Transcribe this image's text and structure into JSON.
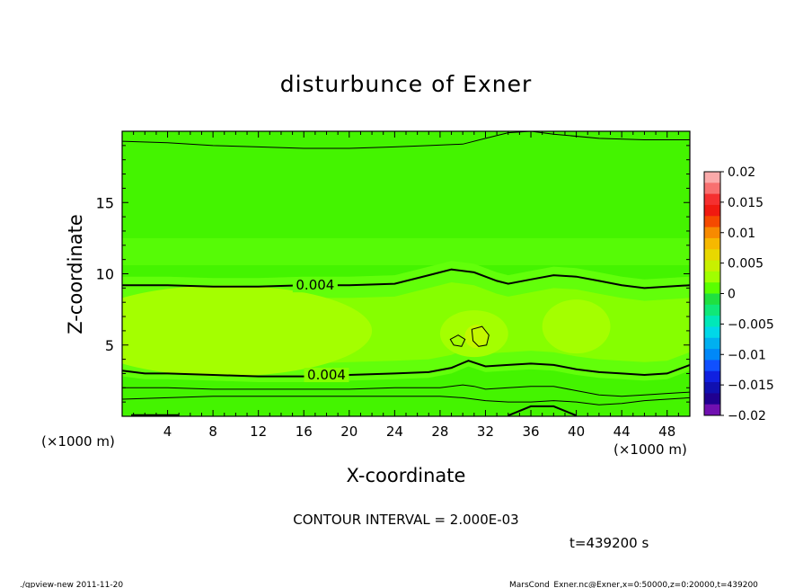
{
  "chart_data": {
    "type": "heatmap",
    "title": "disturbunce of Exner",
    "xlabel": "X-coordinate",
    "ylabel": "Z-coordinate",
    "x_unit": "(×1000 m)",
    "y_unit": "(×1000 m)",
    "xlim": [
      0,
      50
    ],
    "ylim": [
      0,
      20
    ],
    "x_ticks": [
      "4",
      "8",
      "12",
      "16",
      "20",
      "24",
      "28",
      "32",
      "36",
      "40",
      "44",
      "48"
    ],
    "y_ticks": [
      "5",
      "10",
      "15"
    ],
    "contour_interval_text": "CONTOUR INTERVAL = 2.000E-03",
    "time_text": "t=439200 s",
    "contour_labels": [
      {
        "text": "0.004",
        "x": 17,
        "z": 9.2
      },
      {
        "text": "0.004",
        "x": 18,
        "z": 2.9
      }
    ],
    "colorbar": {
      "labels": [
        "0.02",
        "0.015",
        "0.01",
        "0.005",
        "0",
        "−0.005",
        "−0.01",
        "−0.015",
        "−0.02"
      ],
      "levels": [
        0.02,
        0.015,
        0.01,
        0.005,
        0,
        -0.005,
        -0.01,
        -0.015,
        -0.02
      ],
      "colors": [
        "#fbaaaa",
        "#f87070",
        "#f53030",
        "#f01a10",
        "#f54a00",
        "#f78a00",
        "#f6b800",
        "#e8d800",
        "#c8f000",
        "#a0ff00",
        "#5aff00",
        "#20e040",
        "#10e878",
        "#00e8b8",
        "#00d8e8",
        "#00b0f0",
        "#0088f8",
        "#1050ff",
        "#1020e0",
        "#1010b0",
        "#200090",
        "#7010b0"
      ]
    },
    "fill_colors": {
      "outer": "#44f400",
      "band_mid": "#62ff0a",
      "band_high": "#86ff00",
      "core": "#a4ff00",
      "core_peak": "#c4f800"
    },
    "contour_lines": [
      {
        "name": "upper-0.002",
        "weight": "thin",
        "x": [
          0,
          4,
          8,
          12,
          16,
          20,
          24,
          27,
          30,
          32,
          34,
          36,
          38,
          42,
          46,
          50
        ],
        "z": [
          19.3,
          19.2,
          19.0,
          18.9,
          18.8,
          18.8,
          18.9,
          19.0,
          19.1,
          19.5,
          19.9,
          20.0,
          19.8,
          19.5,
          19.4,
          19.4
        ]
      },
      {
        "name": "upper-0.004",
        "weight": "thick",
        "x": [
          0,
          4,
          8,
          12,
          16,
          20,
          24,
          27,
          29,
          31,
          33,
          34,
          36,
          38,
          40,
          42,
          44,
          46,
          48,
          50
        ],
        "z": [
          9.2,
          9.2,
          9.1,
          9.1,
          9.2,
          9.2,
          9.3,
          9.9,
          10.3,
          10.1,
          9.5,
          9.3,
          9.6,
          9.9,
          9.8,
          9.5,
          9.2,
          9.0,
          9.1,
          9.2
        ]
      },
      {
        "name": "lower-0.004",
        "weight": "thick",
        "x": [
          0,
          2,
          4,
          8,
          12,
          16,
          20,
          24,
          27,
          29,
          30.5,
          32,
          34,
          36,
          38,
          40,
          42,
          44,
          46,
          48,
          49,
          50
        ],
        "z": [
          3.2,
          3.0,
          3.0,
          2.9,
          2.8,
          2.8,
          2.9,
          3.0,
          3.1,
          3.4,
          3.9,
          3.5,
          3.6,
          3.7,
          3.6,
          3.3,
          3.1,
          3.0,
          2.9,
          3.0,
          3.3,
          3.6
        ]
      },
      {
        "name": "lower-0.002",
        "weight": "thin",
        "x": [
          0,
          4,
          8,
          12,
          16,
          20,
          24,
          28,
          30,
          31,
          32,
          34,
          36,
          38,
          40,
          42,
          44,
          46,
          48,
          50
        ],
        "z": [
          2.0,
          2.0,
          1.9,
          1.9,
          1.9,
          1.9,
          2.0,
          2.0,
          2.2,
          2.1,
          1.9,
          2.0,
          2.1,
          2.1,
          1.8,
          1.5,
          1.4,
          1.5,
          1.6,
          1.7
        ]
      },
      {
        "name": "lower-0.000",
        "weight": "thin",
        "x": [
          0,
          4,
          8,
          12,
          16,
          20,
          24,
          28,
          30,
          32,
          34,
          36,
          38,
          40,
          42,
          44,
          46,
          48,
          50
        ],
        "z": [
          1.2,
          1.3,
          1.4,
          1.4,
          1.4,
          1.4,
          1.4,
          1.4,
          1.3,
          1.1,
          1.0,
          1.0,
          1.1,
          1.0,
          0.8,
          0.9,
          1.1,
          1.2,
          1.3
        ]
      }
    ],
    "closed_contours": [
      {
        "name": "cell-small",
        "x": [
          28.9,
          29.6,
          30.2,
          29.9,
          29.2
        ],
        "z": [
          5.4,
          5.7,
          5.4,
          4.9,
          5.0
        ]
      },
      {
        "name": "cell-large",
        "x": [
          30.8,
          31.7,
          32.3,
          32.1,
          31.4,
          30.9
        ],
        "z": [
          6.1,
          6.3,
          5.7,
          5.0,
          4.9,
          5.3
        ]
      }
    ]
  },
  "footer": {
    "left": "./gpview-new  2011-11-20",
    "right": "MarsCond_Exner.nc@Exner,x=0:50000,z=0:20000,t=439200"
  }
}
